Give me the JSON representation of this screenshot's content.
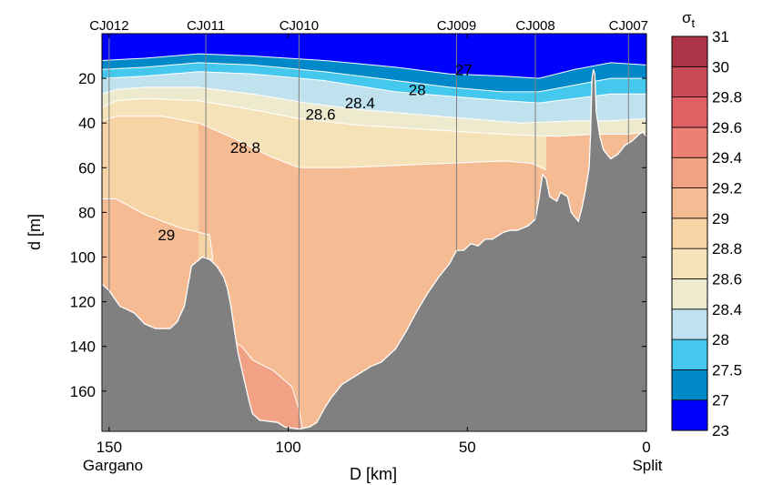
{
  "chart_data": {
    "type": "contour",
    "title": "",
    "xlabel": "D [km]",
    "ylabel": "d [m]",
    "xlim": [
      152,
      0
    ],
    "ylim": [
      178,
      0
    ],
    "x_ticks": [
      150,
      100,
      50,
      0
    ],
    "y_ticks": [
      20,
      40,
      60,
      80,
      100,
      120,
      140,
      160
    ],
    "x_end_labels": {
      "left": "Gargano",
      "right": "Split"
    },
    "stations": [
      {
        "name": "CJ012",
        "D": 150
      },
      {
        "name": "CJ011",
        "D": 123
      },
      {
        "name": "CJ010",
        "D": 97
      },
      {
        "name": "CJ009",
        "D": 53
      },
      {
        "name": "CJ008",
        "D": 31
      },
      {
        "name": "CJ007",
        "D": 5
      }
    ],
    "colorbar": {
      "title": "σt",
      "levels": [
        "23",
        "27",
        "27.5",
        "28",
        "28.4",
        "28.6",
        "28.8",
        "29",
        "29.2",
        "29.4",
        "29.6",
        "29.8",
        "30",
        "31"
      ],
      "colors": [
        "#0000ff",
        "#0089c8",
        "#44c8ee",
        "#c0e2ee",
        "#eeeacd",
        "#f6e2b8",
        "#f7d4a6",
        "#f5bc94",
        "#f2a284",
        "#ee7f74",
        "#e06064",
        "#c94b55",
        "#ae3548"
      ]
    },
    "contour_labels": [
      {
        "text": "27",
        "D": 51,
        "d": 16
      },
      {
        "text": "28",
        "D": 64,
        "d": 25
      },
      {
        "text": "28.4",
        "D": 80,
        "d": 31
      },
      {
        "text": "28.6",
        "D": 91,
        "d": 36
      },
      {
        "text": "28.8",
        "D": 112,
        "d": 51
      },
      {
        "text": "29",
        "D": 134,
        "d": 90
      }
    ],
    "isopycnals": [
      {
        "level": 27,
        "points": [
          [
            152,
            12
          ],
          [
            140,
            11
          ],
          [
            125,
            9
          ],
          [
            110,
            10
          ],
          [
            90,
            12
          ],
          [
            70,
            15
          ],
          [
            55,
            18
          ],
          [
            40,
            19
          ],
          [
            30,
            20
          ],
          [
            20,
            16
          ],
          [
            10,
            13
          ],
          [
            0,
            14
          ]
        ]
      },
      {
        "level": 27.5,
        "points": [
          [
            152,
            16
          ],
          [
            140,
            15
          ],
          [
            125,
            13
          ],
          [
            110,
            14
          ],
          [
            90,
            17
          ],
          [
            70,
            21
          ],
          [
            55,
            24
          ],
          [
            40,
            26
          ],
          [
            30,
            26
          ],
          [
            20,
            23
          ],
          [
            10,
            20
          ],
          [
            0,
            20
          ]
        ]
      },
      {
        "level": 28,
        "points": [
          [
            152,
            20
          ],
          [
            140,
            19
          ],
          [
            125,
            17
          ],
          [
            110,
            18
          ],
          [
            90,
            21
          ],
          [
            70,
            26
          ],
          [
            55,
            28
          ],
          [
            40,
            30
          ],
          [
            30,
            31
          ],
          [
            20,
            29
          ],
          [
            10,
            27
          ],
          [
            0,
            27
          ]
        ]
      },
      {
        "level": 28.4,
        "points": [
          [
            152,
            27
          ],
          [
            148,
            25
          ],
          [
            140,
            24
          ],
          [
            125,
            24
          ],
          [
            110,
            27
          ],
          [
            95,
            31
          ],
          [
            80,
            34
          ],
          [
            65,
            36
          ],
          [
            50,
            38
          ],
          [
            35,
            40
          ],
          [
            20,
            39
          ],
          [
            10,
            39
          ],
          [
            0,
            38
          ]
        ]
      },
      {
        "level": 28.6,
        "points": [
          [
            152,
            33
          ],
          [
            148,
            30
          ],
          [
            140,
            29
          ],
          [
            125,
            30
          ],
          [
            110,
            34
          ],
          [
            97,
            38
          ],
          [
            80,
            41
          ],
          [
            60,
            43
          ],
          [
            40,
            45
          ],
          [
            25,
            46
          ],
          [
            15,
            45
          ],
          [
            5,
            45
          ],
          [
            0,
            44
          ]
        ]
      },
      {
        "level": 28.8,
        "points": [
          [
            152,
            39
          ],
          [
            148,
            37
          ],
          [
            135,
            37
          ],
          [
            125,
            40
          ],
          [
            115,
            47
          ],
          [
            105,
            55
          ],
          [
            97,
            60
          ],
          [
            85,
            60
          ],
          [
            70,
            59
          ],
          [
            55,
            58
          ],
          [
            40,
            57
          ],
          [
            32,
            58
          ],
          [
            28,
            61
          ]
        ]
      },
      {
        "level": 29,
        "points": [
          [
            152,
            74
          ],
          [
            148,
            74
          ],
          [
            140,
            81
          ],
          [
            130,
            87
          ],
          [
            122,
            90
          ],
          [
            121,
            101
          ],
          [
            125,
            101
          ]
        ]
      }
    ],
    "pockets_29": [
      {
        "points": [
          [
            96,
            177
          ],
          [
            97,
            168
          ],
          [
            99,
            158
          ],
          [
            104,
            151
          ],
          [
            110,
            146
          ],
          [
            113,
            140
          ],
          [
            116,
            137
          ],
          [
            115,
            145
          ],
          [
            113,
            160
          ],
          [
            112,
            172
          ],
          [
            108,
            177
          ],
          [
            100,
            178
          ]
        ]
      }
    ],
    "bathymetry": [
      [
        152,
        112
      ],
      [
        150,
        115
      ],
      [
        147,
        122
      ],
      [
        143,
        125
      ],
      [
        140,
        130
      ],
      [
        137,
        132
      ],
      [
        133,
        132
      ],
      [
        131,
        129
      ],
      [
        129,
        122
      ],
      [
        128,
        113
      ],
      [
        127,
        104
      ],
      [
        124,
        100
      ],
      [
        122,
        101
      ],
      [
        120,
        104
      ],
      [
        118,
        109
      ],
      [
        117,
        114
      ],
      [
        116,
        122
      ],
      [
        115,
        133
      ],
      [
        114,
        143
      ],
      [
        113,
        150
      ],
      [
        112,
        157
      ],
      [
        111,
        164
      ],
      [
        110,
        170
      ],
      [
        108,
        173
      ],
      [
        103,
        174
      ],
      [
        101,
        176
      ],
      [
        97,
        177
      ],
      [
        94,
        176
      ],
      [
        92,
        174
      ],
      [
        90,
        168
      ],
      [
        88,
        163
      ],
      [
        85,
        157
      ],
      [
        83,
        155
      ],
      [
        80,
        152
      ],
      [
        77,
        149
      ],
      [
        74,
        147
      ],
      [
        70,
        141
      ],
      [
        67,
        133
      ],
      [
        64,
        124
      ],
      [
        61,
        116
      ],
      [
        58,
        109
      ],
      [
        55,
        103
      ],
      [
        53,
        97
      ],
      [
        51,
        97
      ],
      [
        49,
        94
      ],
      [
        47,
        95
      ],
      [
        45,
        92
      ],
      [
        43,
        92
      ],
      [
        40,
        89
      ],
      [
        38,
        88
      ],
      [
        36,
        88
      ],
      [
        33,
        86
      ],
      [
        31,
        83
      ],
      [
        30,
        74
      ],
      [
        29,
        63
      ],
      [
        28,
        65
      ],
      [
        27,
        73
      ],
      [
        25,
        75
      ],
      [
        24,
        71
      ],
      [
        22,
        73
      ],
      [
        21,
        80
      ],
      [
        19,
        84
      ],
      [
        18,
        78
      ],
      [
        17,
        70
      ],
      [
        16,
        60
      ],
      [
        15.6,
        45
      ],
      [
        15.2,
        20
      ],
      [
        14.8,
        16
      ],
      [
        14.4,
        18
      ],
      [
        14,
        35
      ],
      [
        13,
        46
      ],
      [
        12,
        52
      ],
      [
        10,
        56
      ],
      [
        8,
        54
      ],
      [
        6,
        50
      ],
      [
        4,
        48
      ],
      [
        2,
        45
      ],
      [
        1,
        44
      ],
      [
        0,
        46
      ]
    ]
  }
}
